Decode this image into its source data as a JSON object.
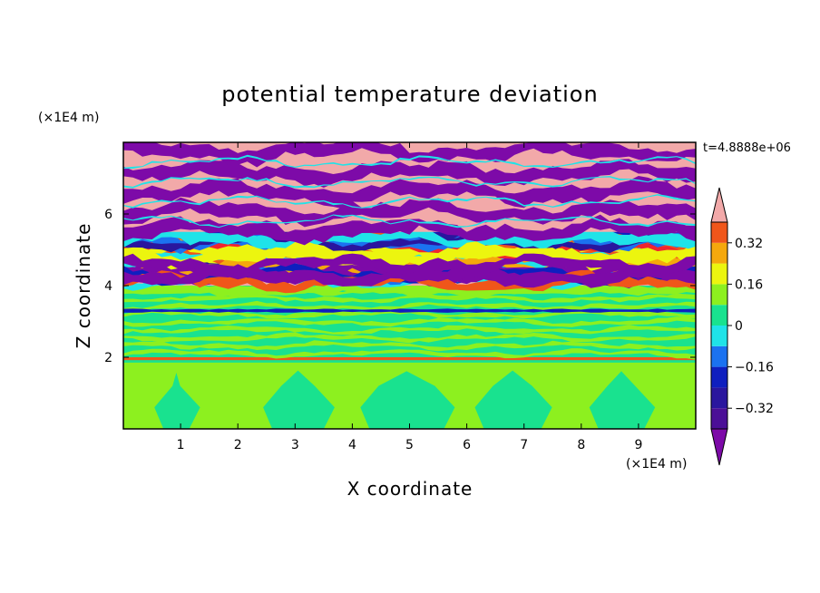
{
  "chart_data": {
    "type": "heatmap",
    "title": "potential temperature deviation",
    "xlabel": "X coordinate",
    "ylabel": "Z coordinate",
    "x_unit": "(×1E4 m)",
    "y_unit": "(×1E4 m)",
    "time_label": "t=4.8888e+06",
    "xlim": [
      0,
      10
    ],
    "ylim": [
      0,
      8
    ],
    "x_ticks": [
      "1",
      "2",
      "3",
      "4",
      "5",
      "6",
      "7",
      "8",
      "9"
    ],
    "y_ticks": [
      "2",
      "4",
      "6"
    ],
    "colorbar": {
      "levels": [
        -0.4,
        -0.32,
        -0.24,
        -0.16,
        -0.08,
        0,
        0.08,
        0.16,
        0.24,
        0.32,
        0.4
      ],
      "tick_labels": [
        "0.32",
        "0.16",
        "0",
        "−0.16",
        "−0.32"
      ],
      "tick_values": [
        0.32,
        0.16,
        0,
        -0.16,
        -0.32
      ],
      "colors": [
        "#4b0f97",
        "#2a169e",
        "#0f1fbf",
        "#1b72f0",
        "#1fe3e8",
        "#19e28f",
        "#8df01f",
        "#ecf50f",
        "#f5a80d",
        "#f0561a",
        "#f0252f",
        "#f2a9a9"
      ],
      "under_color": "#7d0aa8",
      "over_color": "#f2a9a9"
    },
    "layers": [
      {
        "z_range": [
          0,
          1.9
        ],
        "description": "alternating bands",
        "values": [
          -0.04,
          0.04
        ]
      },
      {
        "z_range": [
          1.9,
          2.0
        ],
        "values": [
          0.3
        ]
      },
      {
        "z_range": [
          2.0,
          4.0
        ],
        "values": [
          -0.04,
          0.04
        ]
      },
      {
        "z_range": [
          4.0,
          5.5
        ],
        "values": [
          -0.45,
          -0.3,
          0.1,
          0.3,
          0.45
        ]
      },
      {
        "z_range": [
          5.5,
          8.0
        ],
        "values": [
          -0.45,
          0.45
        ]
      }
    ]
  }
}
